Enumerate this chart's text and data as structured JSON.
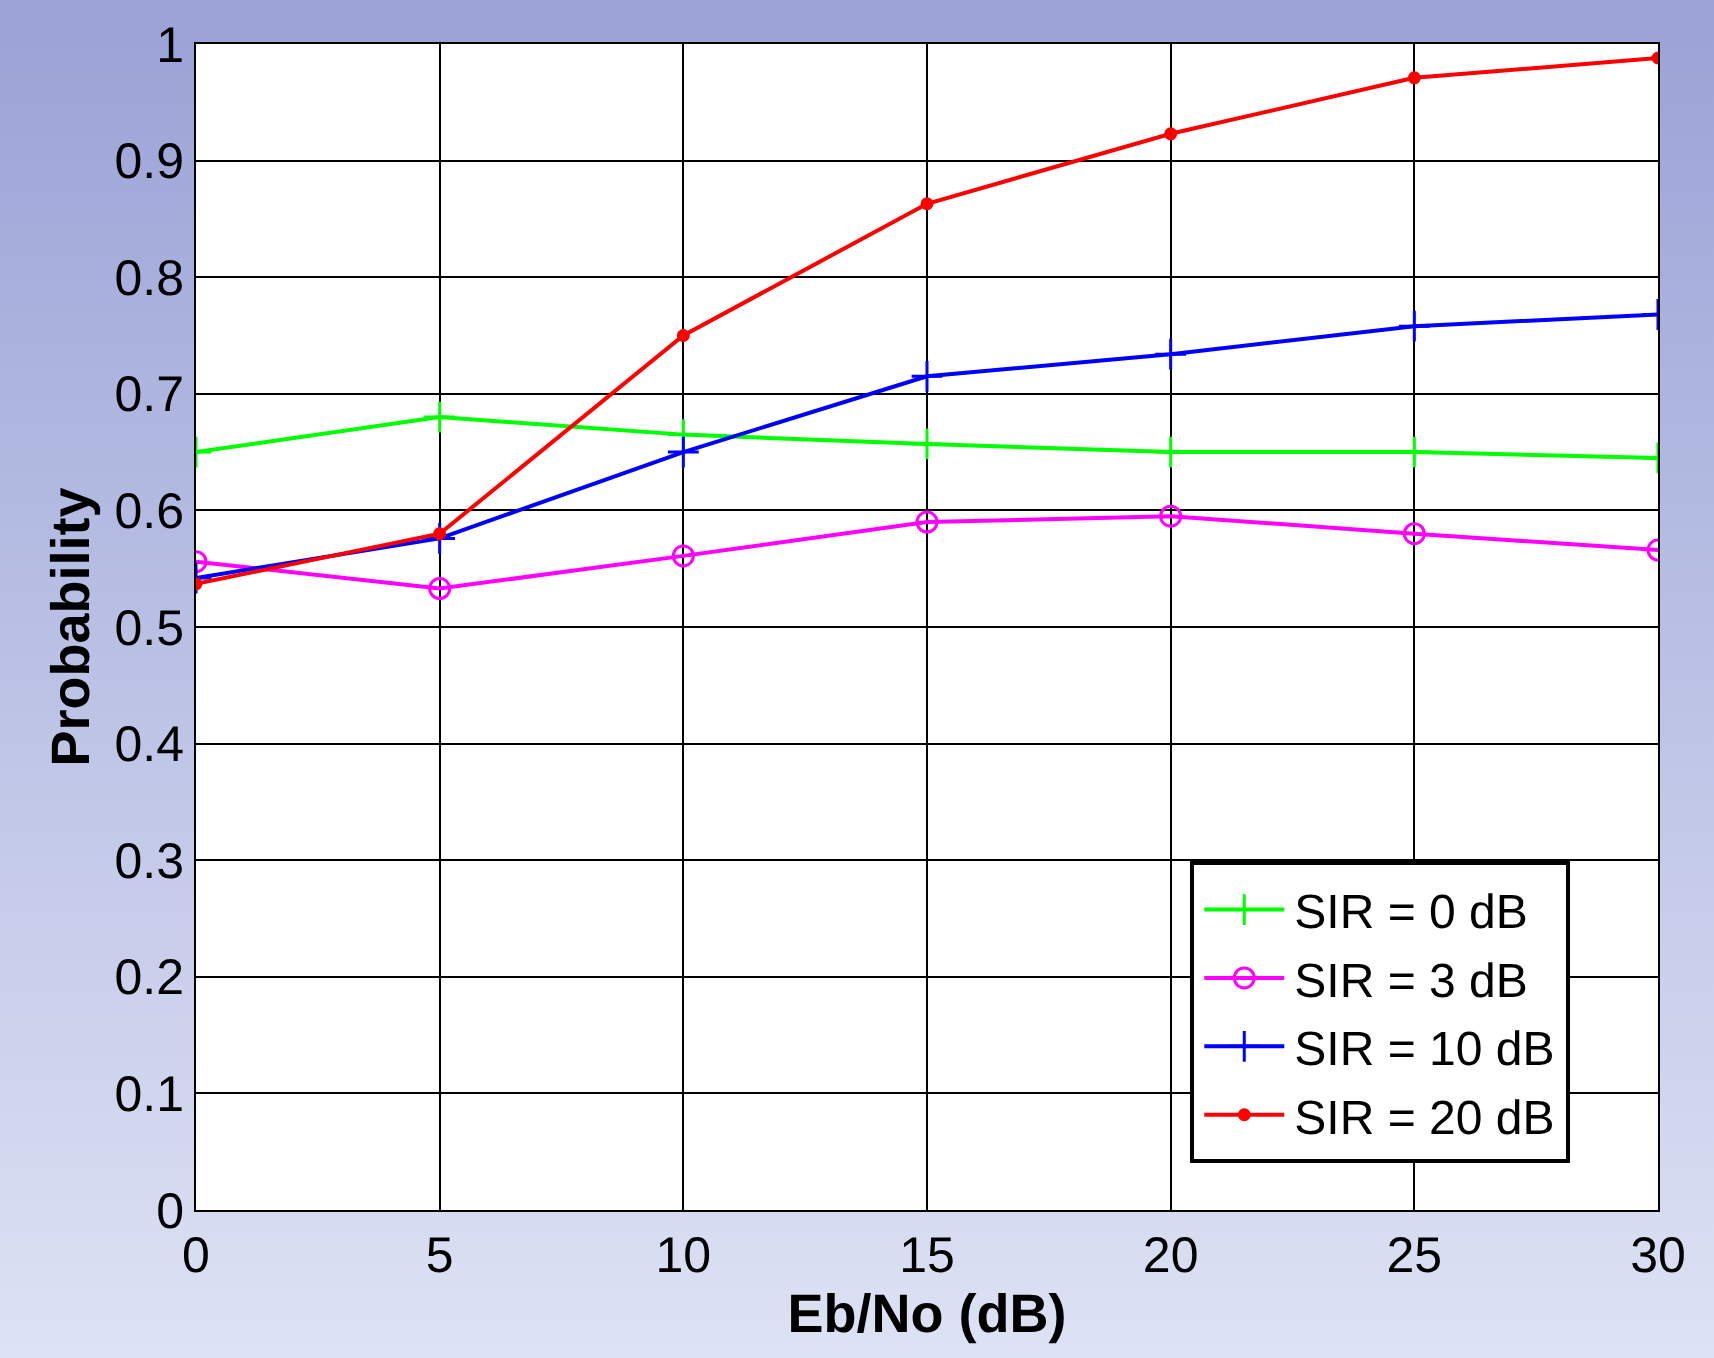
{
  "chart_data": {
    "type": "line",
    "xlabel": "Eb/No (dB)",
    "ylabel": "Probability",
    "x": [
      0,
      5,
      10,
      15,
      20,
      25,
      30
    ],
    "series": [
      {
        "name": "SIR = 0 dB",
        "color": "#00ff00",
        "marker": "cross",
        "values": [
          0.65,
          0.68,
          0.665,
          0.657,
          0.65,
          0.65,
          0.645
        ]
      },
      {
        "name": "SIR = 3 dB",
        "color": "#ff00ff",
        "marker": "circle",
        "values": [
          0.556,
          0.533,
          0.561,
          0.59,
          0.595,
          0.58,
          0.566
        ]
      },
      {
        "name": "SIR = 10 dB",
        "color": "#0000ff",
        "marker": "cross",
        "values": [
          0.542,
          0.576,
          0.65,
          0.715,
          0.734,
          0.758,
          0.768
        ]
      },
      {
        "name": "SIR = 20 dB",
        "color": "#ff0000",
        "marker": "dot",
        "values": [
          0.537,
          0.58,
          0.75,
          0.863,
          0.923,
          0.971,
          0.988
        ]
      }
    ],
    "xlim": [
      0,
      30
    ],
    "xticks": [
      0,
      5,
      10,
      15,
      20,
      25,
      30
    ],
    "ylim": [
      0,
      1
    ],
    "yticks": [
      0,
      0.1,
      0.2,
      0.3,
      0.4,
      0.5,
      0.6,
      0.7,
      0.8,
      0.9,
      1
    ],
    "grid": true,
    "legend": "bottom right",
    "line_style": "solid"
  }
}
